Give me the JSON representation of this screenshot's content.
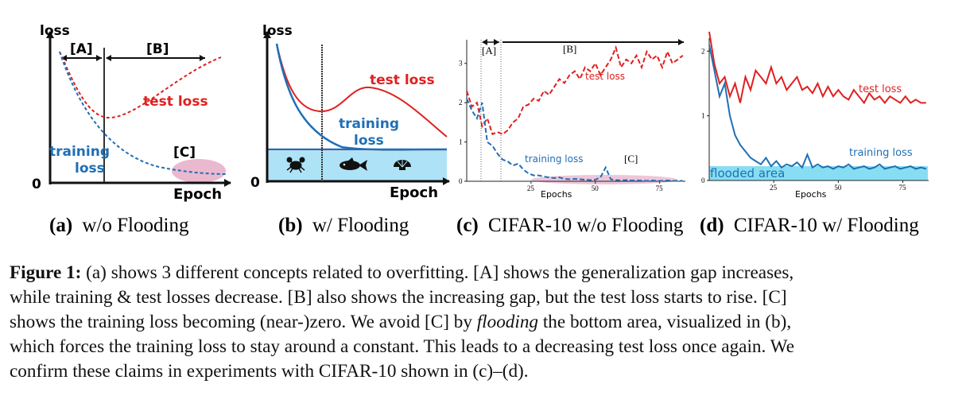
{
  "panels": {
    "a": {
      "ylabel": "loss",
      "xlabel": "Epoch",
      "zero": "0",
      "bracket_a": "[A]",
      "bracket_b": "[B]",
      "bracket_c": "[C]",
      "test_label": "test loss",
      "train_label_1": "training",
      "train_label_2": "loss",
      "caption_letter": "(a)",
      "caption_text": "w/o Flooding"
    },
    "b": {
      "ylabel": "loss",
      "xlabel": "Epoch",
      "zero": "0",
      "test_label": "test loss",
      "train_label_1": "training",
      "train_label_2": "loss",
      "caption_letter": "(b)",
      "caption_text": "w/ Flooding",
      "icons": [
        "crab-icon",
        "fish-icon",
        "shell-icon"
      ]
    },
    "c": {
      "xlabel": "Epochs",
      "yticks": [
        "0",
        "1",
        "2",
        "3"
      ],
      "xticks": [
        "25",
        "50",
        "75"
      ],
      "bracket_a": "[A]",
      "bracket_b": "[B]",
      "bracket_c": "[C]",
      "test_label": "test loss",
      "train_label": "training loss",
      "caption_letter": "(c)",
      "caption_text": "CIFAR-10 w/o Flooding"
    },
    "d": {
      "xlabel": "Epochs",
      "yticks": [
        "0",
        "1",
        "2"
      ],
      "xticks": [
        "25",
        "50",
        "75"
      ],
      "test_label": "test loss",
      "train_label": "training loss",
      "flood_label": "flooded area",
      "caption_letter": "(d)",
      "caption_text": "CIFAR-10 w/ Flooding"
    }
  },
  "colors": {
    "test": "#e02020",
    "train": "#1f6fb5",
    "flood": "#aee3f7",
    "flood_d": "#5fd3ee",
    "pink": "#eab8cf"
  },
  "caption": {
    "label": "Figure 1:",
    "line1": " (a) shows 3 different concepts related to overfitting. [A] shows the generalization gap increases,",
    "line2": "while training & test losses decrease. [B] also shows the increasing gap, but the test loss starts to rise. [C]",
    "line3": "shows the training loss becoming (near-)zero. We avoid [C] by ",
    "line3_em": "flooding",
    "line3_end": " the bottom area, visualized in (b),",
    "line4": "which forces the training loss to stay around a constant. This leads to a decreasing test loss once again. We",
    "line5": "confirm these claims in experiments with CIFAR-10 shown in (c)–(d)."
  },
  "chart_data": [
    {
      "type": "line",
      "title": "",
      "xlabel": "Epochs",
      "ylabel": "",
      "ylim": [
        0,
        3.5
      ],
      "xlim": [
        0,
        85
      ],
      "series": [
        {
          "name": "test loss",
          "x": [
            0,
            2,
            4,
            6,
            8,
            10,
            12,
            14,
            16,
            18,
            20,
            22,
            24,
            26,
            28,
            30,
            32,
            34,
            36,
            38,
            40,
            42,
            44,
            46,
            48,
            50,
            52,
            54,
            56,
            58,
            60,
            62,
            64,
            66,
            68,
            70,
            72,
            74,
            76,
            78,
            80,
            82,
            84
          ],
          "values": [
            2.3,
            1.9,
            2.0,
            1.4,
            1.6,
            1.2,
            1.25,
            1.2,
            1.3,
            1.5,
            1.6,
            1.9,
            1.95,
            2.1,
            2.05,
            2.3,
            2.2,
            2.4,
            2.6,
            2.5,
            2.7,
            2.8,
            2.6,
            2.9,
            2.8,
            3.0,
            2.7,
            2.9,
            3.1,
            3.4,
            2.9,
            3.1,
            3.0,
            3.2,
            2.9,
            3.3,
            3.1,
            3.2,
            2.9,
            3.3,
            3.0,
            3.1,
            3.2
          ]
        },
        {
          "name": "training loss",
          "x": [
            0,
            2,
            4,
            6,
            8,
            10,
            12,
            14,
            16,
            18,
            20,
            22,
            24,
            26,
            28,
            30,
            32,
            34,
            36,
            38,
            40,
            42,
            44,
            46,
            48,
            50,
            52,
            54,
            56,
            58,
            60,
            62,
            64,
            66,
            68,
            70,
            72,
            74,
            76,
            78,
            80,
            82,
            84
          ],
          "values": [
            2.1,
            1.8,
            1.6,
            2.0,
            1.0,
            0.9,
            0.7,
            0.55,
            0.5,
            0.4,
            0.45,
            0.3,
            0.2,
            0.15,
            0.15,
            0.12,
            0.1,
            0.08,
            0.1,
            0.06,
            0.05,
            0.06,
            0.05,
            0.04,
            0.03,
            0.04,
            0.1,
            0.35,
            0.05,
            0.03,
            0.02,
            0.03,
            0.02,
            0.02,
            0.02,
            0.01,
            0.02,
            0.01,
            0.01,
            0.02,
            0.01,
            0.01,
            0.01
          ]
        }
      ]
    },
    {
      "type": "line",
      "title": "",
      "xlabel": "Epochs",
      "ylabel": "",
      "ylim": [
        0,
        2.2
      ],
      "xlim": [
        0,
        85
      ],
      "series": [
        {
          "name": "test loss",
          "x": [
            0,
            2,
            4,
            6,
            8,
            10,
            12,
            14,
            16,
            18,
            20,
            22,
            24,
            26,
            28,
            30,
            32,
            34,
            36,
            38,
            40,
            42,
            44,
            46,
            48,
            50,
            52,
            54,
            56,
            58,
            60,
            62,
            64,
            66,
            68,
            70,
            72,
            74,
            76,
            78,
            80,
            82,
            84
          ],
          "values": [
            2.3,
            1.8,
            1.5,
            1.6,
            1.3,
            1.5,
            1.2,
            1.6,
            1.4,
            1.7,
            1.6,
            1.5,
            1.75,
            1.5,
            1.6,
            1.4,
            1.5,
            1.6,
            1.4,
            1.45,
            1.35,
            1.5,
            1.3,
            1.45,
            1.3,
            1.4,
            1.3,
            1.25,
            1.4,
            1.3,
            1.2,
            1.35,
            1.25,
            1.3,
            1.2,
            1.3,
            1.25,
            1.2,
            1.3,
            1.2,
            1.25,
            1.2,
            1.2
          ]
        },
        {
          "name": "training loss",
          "x": [
            0,
            2,
            4,
            6,
            8,
            10,
            12,
            14,
            16,
            18,
            20,
            22,
            24,
            26,
            28,
            30,
            32,
            34,
            36,
            38,
            40,
            42,
            44,
            46,
            48,
            50,
            52,
            54,
            56,
            58,
            60,
            62,
            64,
            66,
            68,
            70,
            72,
            74,
            76,
            78,
            80,
            82,
            84
          ],
          "values": [
            2.1,
            1.7,
            1.3,
            1.5,
            1.0,
            0.7,
            0.55,
            0.45,
            0.35,
            0.3,
            0.25,
            0.35,
            0.22,
            0.3,
            0.2,
            0.25,
            0.22,
            0.28,
            0.2,
            0.4,
            0.2,
            0.25,
            0.2,
            0.22,
            0.18,
            0.22,
            0.2,
            0.25,
            0.18,
            0.2,
            0.22,
            0.18,
            0.2,
            0.25,
            0.18,
            0.2,
            0.22,
            0.18,
            0.2,
            0.22,
            0.18,
            0.2,
            0.18
          ]
        }
      ]
    }
  ]
}
